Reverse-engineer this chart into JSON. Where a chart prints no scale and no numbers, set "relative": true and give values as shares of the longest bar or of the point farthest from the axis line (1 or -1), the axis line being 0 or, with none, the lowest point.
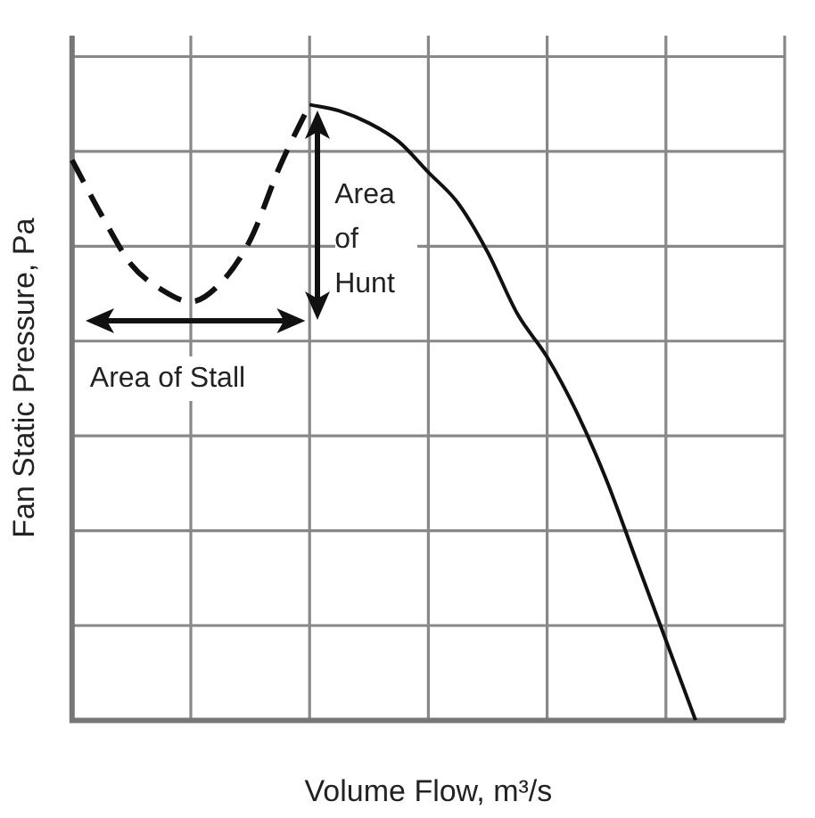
{
  "chart_data": {
    "type": "line",
    "relative": true,
    "xlabel": "Volume Flow, m³/s",
    "ylabel": "Fan Static Pressure, Pa",
    "categories": [
      null,
      null,
      null,
      null,
      null,
      null,
      null,
      null,
      null,
      null,
      null,
      null,
      null,
      null,
      null,
      null,
      null,
      null,
      null,
      null,
      null,
      null,
      null,
      null,
      null
    ],
    "series": [
      {
        "color": "#111111",
        "line_style": "dashed",
        "values": [
          0.91,
          0.82,
          0.74,
          0.7,
          0.68,
          0.71,
          0.78,
          0.9,
          1,
          null,
          null,
          null,
          null,
          null,
          null,
          null,
          null,
          null,
          null,
          null,
          null,
          null,
          null,
          null,
          null
        ]
      },
      {
        "color": "#111111",
        "line_style": "solid",
        "values": [
          null,
          null,
          null,
          null,
          null,
          null,
          null,
          null,
          1,
          0.99,
          0.97,
          0.94,
          0.89,
          0.84,
          0.76,
          0.66,
          0.59,
          0.5,
          0.39,
          0.26,
          0.13,
          0,
          null,
          null,
          null
        ]
      }
    ],
    "annotations": [
      "Area of Hunt",
      "Area of Stall"
    ],
    "grid": true,
    "legend": false,
    "marker": "none"
  }
}
